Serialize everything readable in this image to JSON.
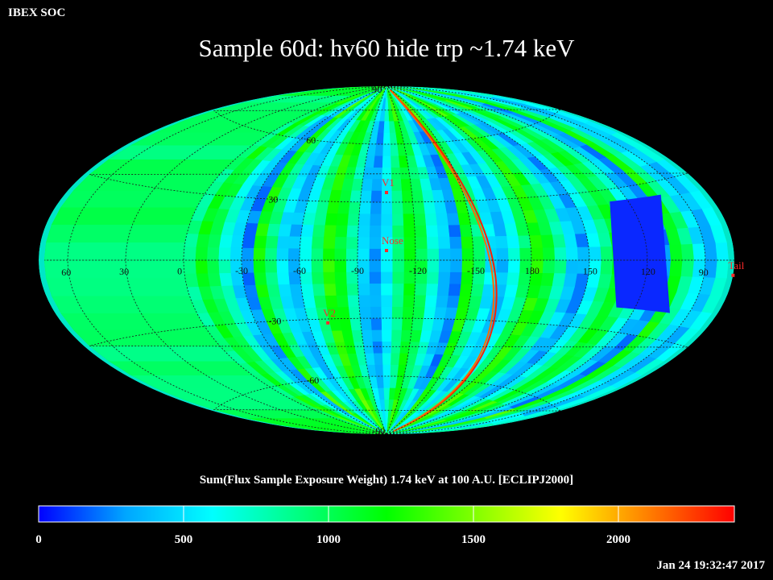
{
  "header": {
    "org_label": "IBEX SOC",
    "title": "Sample 60d: hv60 hide trp ~1.74 keV",
    "timestamp": "Jan 24 19:32:47 2017"
  },
  "map": {
    "projection": "Aitoff",
    "frame": "ECLIPJ2000",
    "longitude_labels": [
      "60",
      "30",
      "0",
      "-30",
      "-60",
      "-90",
      "-120",
      "-150",
      "180",
      "150",
      "120",
      "90"
    ],
    "latitude_labels": [
      "90",
      "60",
      "30",
      "-30",
      "-60",
      "-90"
    ],
    "markers": [
      {
        "label": "V1",
        "lon": 255,
        "lat": 35
      },
      {
        "label": "Nose",
        "lon": 255,
        "lat": 5
      },
      {
        "label": "V2",
        "lon": 289,
        "lat": -32
      },
      {
        "label": "Tail",
        "lon": 75,
        "lat": -5
      }
    ],
    "marker_color": "#ff2a2a",
    "grid_color": "#1a1a1a"
  },
  "colorbar": {
    "label": "Sum(Flux Sample Exposure Weight)  1.74 keV at 100 A.U. [ECLIPJ2000]",
    "min": 0,
    "max": 2400,
    "tick_labels": [
      "0",
      "500",
      "1000",
      "1500",
      "2000"
    ],
    "tick_values": [
      0,
      500,
      1000,
      1500,
      2000
    ],
    "colors": [
      "#0000ff",
      "#00a6ff",
      "#00ffff",
      "#00ff80",
      "#00ff00",
      "#80ff00",
      "#ffff00",
      "#ff8000",
      "#ff0000"
    ]
  }
}
